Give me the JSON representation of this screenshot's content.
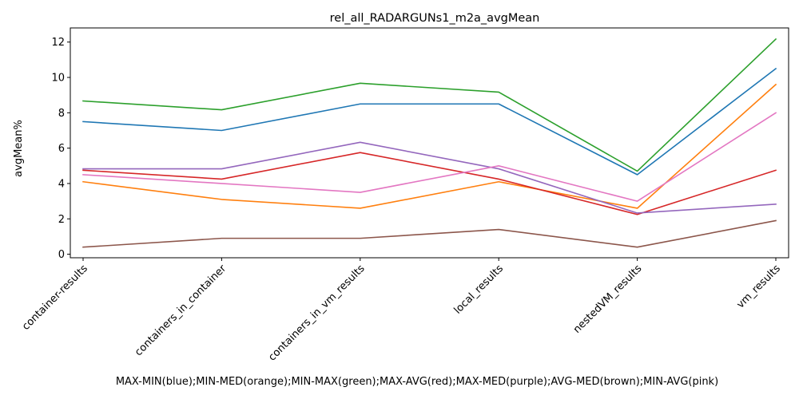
{
  "chart_data": {
    "type": "line",
    "title": "rel_all_RADARGUNs1_m2a_avgMean",
    "xlabel": "MAX-MIN(blue);MIN-MED(orange);MIN-MAX(green);MAX-AVG(red);MAX-MED(purple);AVG-MED(brown);MIN-AVG(pink)",
    "ylabel": "avgMean%",
    "categories": [
      "container-results",
      "containers_in_container",
      "containers_in_vm_results",
      "local_results",
      "nestedVM_results",
      "vm_results"
    ],
    "ylim": [
      -0.2,
      12.8
    ],
    "yticks": [
      0,
      2,
      4,
      6,
      8,
      10,
      12
    ],
    "grid": false,
    "series": [
      {
        "color": "#1f77b4",
        "values": [
          7.5,
          7.0,
          8.5,
          8.5,
          4.5,
          10.5
        ]
      },
      {
        "color": "#ff7f0e",
        "values": [
          4.1,
          3.1,
          2.6,
          4.1,
          2.6,
          9.6
        ]
      },
      {
        "color": "#2ca02c",
        "values": [
          8.67,
          8.17,
          9.67,
          9.17,
          4.7,
          12.17
        ]
      },
      {
        "color": "#d62728",
        "values": [
          4.75,
          4.25,
          5.75,
          4.25,
          2.25,
          4.75
        ]
      },
      {
        "color": "#9467bd",
        "values": [
          4.83,
          4.83,
          6.33,
          4.83,
          2.33,
          2.83
        ]
      },
      {
        "color": "#8c564b",
        "values": [
          0.4,
          0.9,
          0.9,
          1.4,
          0.4,
          1.9
        ]
      },
      {
        "color": "#e377c2",
        "values": [
          4.5,
          4.0,
          3.5,
          5.0,
          3.0,
          8.0
        ]
      }
    ]
  }
}
